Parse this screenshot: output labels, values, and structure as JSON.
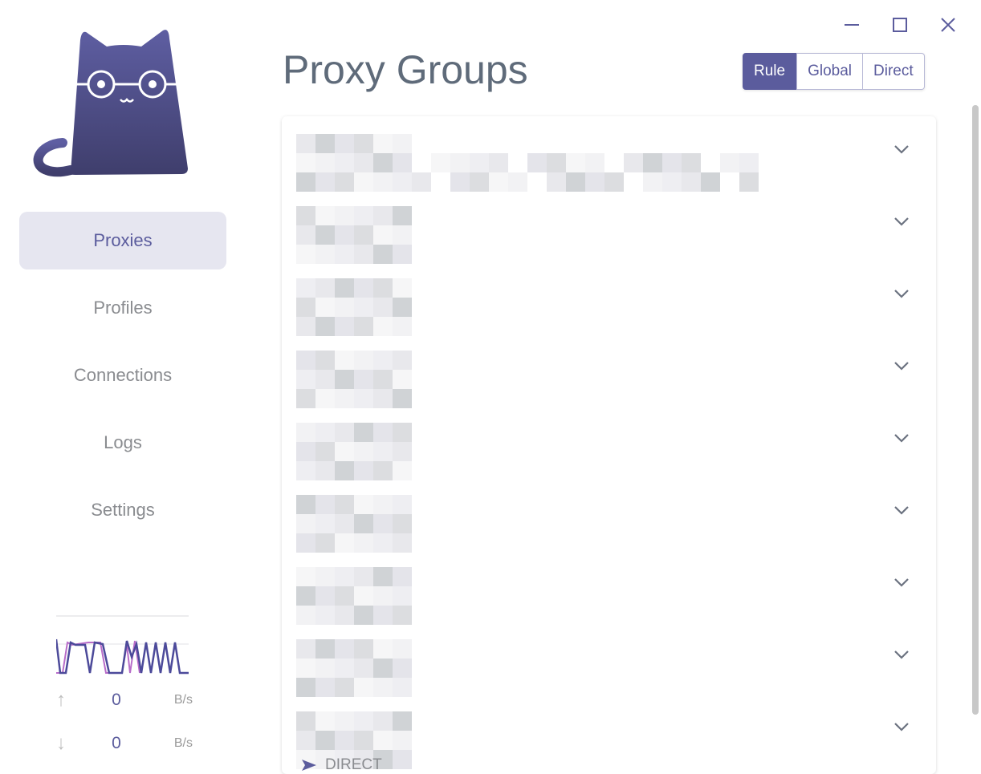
{
  "sidebar": {
    "nav": [
      {
        "label": "Proxies",
        "active": true
      },
      {
        "label": "Profiles"
      },
      {
        "label": "Connections"
      },
      {
        "label": "Logs"
      },
      {
        "label": "Settings"
      }
    ],
    "traffic": {
      "upload_value": "0",
      "upload_unit": "B/s",
      "download_value": "0",
      "download_unit": "B/s"
    }
  },
  "header": {
    "title": "Proxy Groups",
    "modes": [
      "Rule",
      "Global",
      "Direct"
    ],
    "active_mode": "Rule"
  },
  "groups": {
    "count": 9,
    "last_selected": "DIRECT"
  },
  "colors": {
    "accent": "#5b5c9d",
    "upload_line": "#b86cc9",
    "download_line": "#4c4a9a"
  }
}
